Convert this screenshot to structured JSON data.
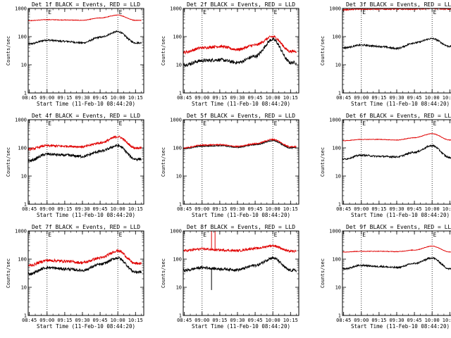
{
  "chart_data": [
    {
      "type": "line",
      "title": "Det 1f BLACK = Events, RED = LLD",
      "xlabel": "Start Time (11-Feb-10 08:44:20)",
      "ylabel": "Counts/sec",
      "yscale": "log",
      "ylim": [
        1,
        1000
      ],
      "ytick_labels": [
        "1",
        "10",
        "100",
        "1000"
      ],
      "xtick_labels": [
        "08:45",
        "09:00",
        "09:15",
        "09:30",
        "09:45",
        "10:00",
        "10:15"
      ],
      "x": [
        "08:45",
        "09:00",
        "09:15",
        "09:30",
        "09:45",
        "10:00",
        "10:15"
      ],
      "markers": [
        {
          "time": "09:00",
          "label": "E"
        },
        {
          "time": "10:00",
          "label": "E"
        }
      ],
      "series": [
        {
          "color": "#000000",
          "noise": 0.03,
          "values": [
            55,
            75,
            68,
            60,
            95,
            150,
            60
          ]
        },
        {
          "color": "#e00000",
          "noise": 0.01,
          "values": [
            370,
            400,
            390,
            380,
            460,
            580,
            380
          ]
        }
      ]
    },
    {
      "type": "line",
      "title": "Det 2f BLACK = Events, RED = LLD",
      "xlabel": "Start Time (11-Feb-10 08:44:20)",
      "ylabel": "Counts/sec",
      "yscale": "log",
      "ylim": [
        1,
        1000
      ],
      "ytick_labels": [
        "1",
        "10",
        "100",
        "1000"
      ],
      "xtick_labels": [
        "08:45",
        "09:00",
        "09:15",
        "09:30",
        "09:45",
        "10:00",
        "10:15"
      ],
      "x": [
        "08:45",
        "09:00",
        "09:15",
        "09:30",
        "09:45",
        "10:00",
        "10:15"
      ],
      "markers": [
        {
          "time": "09:00",
          "label": "E"
        },
        {
          "time": "10:00",
          "label": "E"
        }
      ],
      "series": [
        {
          "color": "#000000",
          "noise": 0.06,
          "values": [
            10,
            14,
            15,
            12,
            20,
            80,
            12
          ]
        },
        {
          "color": "#e00000",
          "noise": 0.05,
          "values": [
            28,
            40,
            45,
            35,
            50,
            100,
            30
          ]
        }
      ]
    },
    {
      "type": "line",
      "title": "Det 3f BLACK = Events, RED = LLD",
      "xlabel": "Start Time (11-Feb-10 08:44:20)",
      "ylabel": "Counts/sec",
      "yscale": "log",
      "ylim": [
        1,
        1000
      ],
      "ytick_labels": [
        "1",
        "10",
        "100",
        "1000"
      ],
      "xtick_labels": [
        "08:45",
        "09:00",
        "09:15",
        "09:30",
        "09:45",
        "10:00",
        "10:15"
      ],
      "x": [
        "08:45",
        "09:00",
        "09:15",
        "09:30",
        "09:45",
        "10:00",
        "10:15"
      ],
      "markers": [
        {
          "time": "09:00",
          "label": "E"
        },
        {
          "time": "10:00",
          "label": "E"
        }
      ],
      "series": [
        {
          "color": "#000000",
          "noise": 0.03,
          "values": [
            40,
            50,
            45,
            38,
            60,
            85,
            45
          ]
        },
        {
          "color": "#e00000",
          "noise": 0.02,
          "values": [
            900,
            950,
            950,
            950,
            950,
            1000,
            950
          ]
        }
      ]
    },
    {
      "type": "line",
      "title": "Det 4f BLACK = Events, RED = LLD",
      "xlabel": "Start Time (11-Feb-10 08:44:20)",
      "ylabel": "Counts/sec",
      "yscale": "log",
      "ylim": [
        1,
        1000
      ],
      "ytick_labels": [
        "1",
        "10",
        "100",
        "1000"
      ],
      "xtick_labels": [
        "08:45",
        "09:00",
        "09:15",
        "09:30",
        "09:45",
        "10:00",
        "10:15"
      ],
      "x": [
        "08:45",
        "09:00",
        "09:15",
        "09:30",
        "09:45",
        "10:00",
        "10:15"
      ],
      "markers": [
        {
          "time": "09:00",
          "label": "E"
        },
        {
          "time": "10:00",
          "label": "E"
        }
      ],
      "series": [
        {
          "color": "#000000",
          "noise": 0.05,
          "values": [
            35,
            60,
            55,
            50,
            75,
            120,
            40
          ]
        },
        {
          "color": "#e00000",
          "noise": 0.04,
          "values": [
            90,
            120,
            115,
            110,
            150,
            250,
            100
          ]
        }
      ]
    },
    {
      "type": "line",
      "title": "Det 5f BLACK = Events, RED = LLD",
      "xlabel": "Start Time (11-Feb-10 08:44:20)",
      "ylabel": "Counts/sec",
      "yscale": "log",
      "ylim": [
        1,
        1000
      ],
      "ytick_labels": [
        "1",
        "10",
        "100",
        "1000"
      ],
      "xtick_labels": [
        "08:45",
        "09:00",
        "09:15",
        "09:30",
        "09:45",
        "10:00",
        "10:15"
      ],
      "x": [
        "08:45",
        "09:00",
        "09:15",
        "09:30",
        "09:45",
        "10:00",
        "10:15"
      ],
      "markers": [
        {
          "time": "09:00",
          "label": "E"
        },
        {
          "time": "10:00",
          "label": "E"
        }
      ],
      "series": [
        {
          "color": "#000000",
          "noise": 0.02,
          "values": [
            95,
            115,
            120,
            105,
            130,
            180,
            100
          ]
        },
        {
          "color": "#e00000",
          "noise": 0.02,
          "values": [
            100,
            125,
            130,
            112,
            140,
            200,
            110
          ]
        }
      ]
    },
    {
      "type": "line",
      "title": "Det 6f BLACK = Events, RED = LLD",
      "xlabel": "Start Time (11-Feb-10 08:44:20)",
      "ylabel": "Counts/sec",
      "yscale": "log",
      "ylim": [
        1,
        1000
      ],
      "ytick_labels": [
        "1",
        "10",
        "100",
        "1000"
      ],
      "xtick_labels": [
        "08:45",
        "09:00",
        "09:15",
        "09:30",
        "09:45",
        "10:00",
        "10:15"
      ],
      "x": [
        "08:45",
        "09:00",
        "09:15",
        "09:30",
        "09:45",
        "10:00",
        "10:15"
      ],
      "markers": [
        {
          "time": "09:00",
          "label": "E"
        },
        {
          "time": "10:00",
          "label": "E"
        }
      ],
      "series": [
        {
          "color": "#000000",
          "noise": 0.03,
          "values": [
            40,
            55,
            50,
            48,
            70,
            120,
            45
          ]
        },
        {
          "color": "#e00000",
          "noise": 0.01,
          "values": [
            180,
            200,
            200,
            190,
            230,
            320,
            190
          ]
        }
      ]
    },
    {
      "type": "line",
      "title": "Det 7f BLACK = Events, RED = LLD",
      "xlabel": "Start Time (11-Feb-10 08:44:20)",
      "ylabel": "Counts/sec",
      "yscale": "log",
      "ylim": [
        1,
        1000
      ],
      "ytick_labels": [
        "1",
        "10",
        "100",
        "1000"
      ],
      "xtick_labels": [
        "08:45",
        "09:00",
        "09:15",
        "09:30",
        "09:45",
        "10:00",
        "10:15"
      ],
      "x": [
        "08:45",
        "09:00",
        "09:15",
        "09:30",
        "09:45",
        "10:00",
        "10:15"
      ],
      "markers": [
        {
          "time": "09:00",
          "label": "E"
        },
        {
          "time": "10:00",
          "label": "E"
        }
      ],
      "series": [
        {
          "color": "#000000",
          "noise": 0.05,
          "values": [
            30,
            50,
            45,
            40,
            65,
            110,
            35
          ]
        },
        {
          "color": "#e00000",
          "noise": 0.05,
          "values": [
            60,
            90,
            85,
            75,
            110,
            200,
            70
          ]
        }
      ]
    },
    {
      "type": "line",
      "title": "Det 8f BLACK = Events, RED = LLD",
      "xlabel": "Start Time (11-Feb-10 08:44:20)",
      "ylabel": "Counts/sec",
      "yscale": "log",
      "ylim": [
        1,
        1000
      ],
      "ytick_labels": [
        "1",
        "10",
        "100",
        "1000"
      ],
      "xtick_labels": [
        "08:45",
        "09:00",
        "09:15",
        "09:30",
        "09:45",
        "10:00",
        "10:15"
      ],
      "x": [
        "08:45",
        "09:00",
        "09:15",
        "09:30",
        "09:45",
        "10:00",
        "10:15"
      ],
      "markers": [
        {
          "time": "09:00",
          "label": "E"
        },
        {
          "time": "10:00",
          "label": "E"
        }
      ],
      "spikes": [
        {
          "time": "09:08",
          "red_to": 1000,
          "black_to": 8
        }
      ],
      "series": [
        {
          "color": "#000000",
          "noise": 0.05,
          "values": [
            40,
            50,
            45,
            42,
            60,
            110,
            40
          ]
        },
        {
          "color": "#e00000",
          "noise": 0.04,
          "values": [
            200,
            230,
            210,
            200,
            240,
            300,
            190
          ]
        }
      ]
    },
    {
      "type": "line",
      "title": "Det 9f BLACK = Events, RED = LLD",
      "xlabel": "Start Time (11-Feb-10 08:44:20)",
      "ylabel": "Counts/sec",
      "yscale": "log",
      "ylim": [
        1,
        1000
      ],
      "ytick_labels": [
        "1",
        "10",
        "100",
        "1000"
      ],
      "xtick_labels": [
        "08:45",
        "09:00",
        "09:15",
        "09:30",
        "09:45",
        "10:00",
        "10:15"
      ],
      "x": [
        "08:45",
        "09:00",
        "09:15",
        "09:30",
        "09:45",
        "10:00",
        "10:15"
      ],
      "markers": [
        {
          "time": "09:00",
          "label": "E"
        },
        {
          "time": "10:00",
          "label": "E"
        }
      ],
      "series": [
        {
          "color": "#000000",
          "noise": 0.03,
          "values": [
            45,
            60,
            55,
            50,
            70,
            110,
            45
          ]
        },
        {
          "color": "#e00000",
          "noise": 0.01,
          "values": [
            180,
            190,
            190,
            185,
            210,
            290,
            180
          ]
        }
      ]
    }
  ]
}
